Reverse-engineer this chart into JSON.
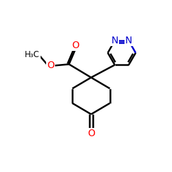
{
  "bg_color": "#ffffff",
  "bond_color": "#000000",
  "oxygen_color": "#ff0000",
  "nitrogen_color": "#0000cc",
  "line_width": 1.8,
  "font_size_atom": 10,
  "font_size_small": 8.5,
  "xlim": [
    0,
    10
  ],
  "ylim": [
    0,
    10
  ]
}
